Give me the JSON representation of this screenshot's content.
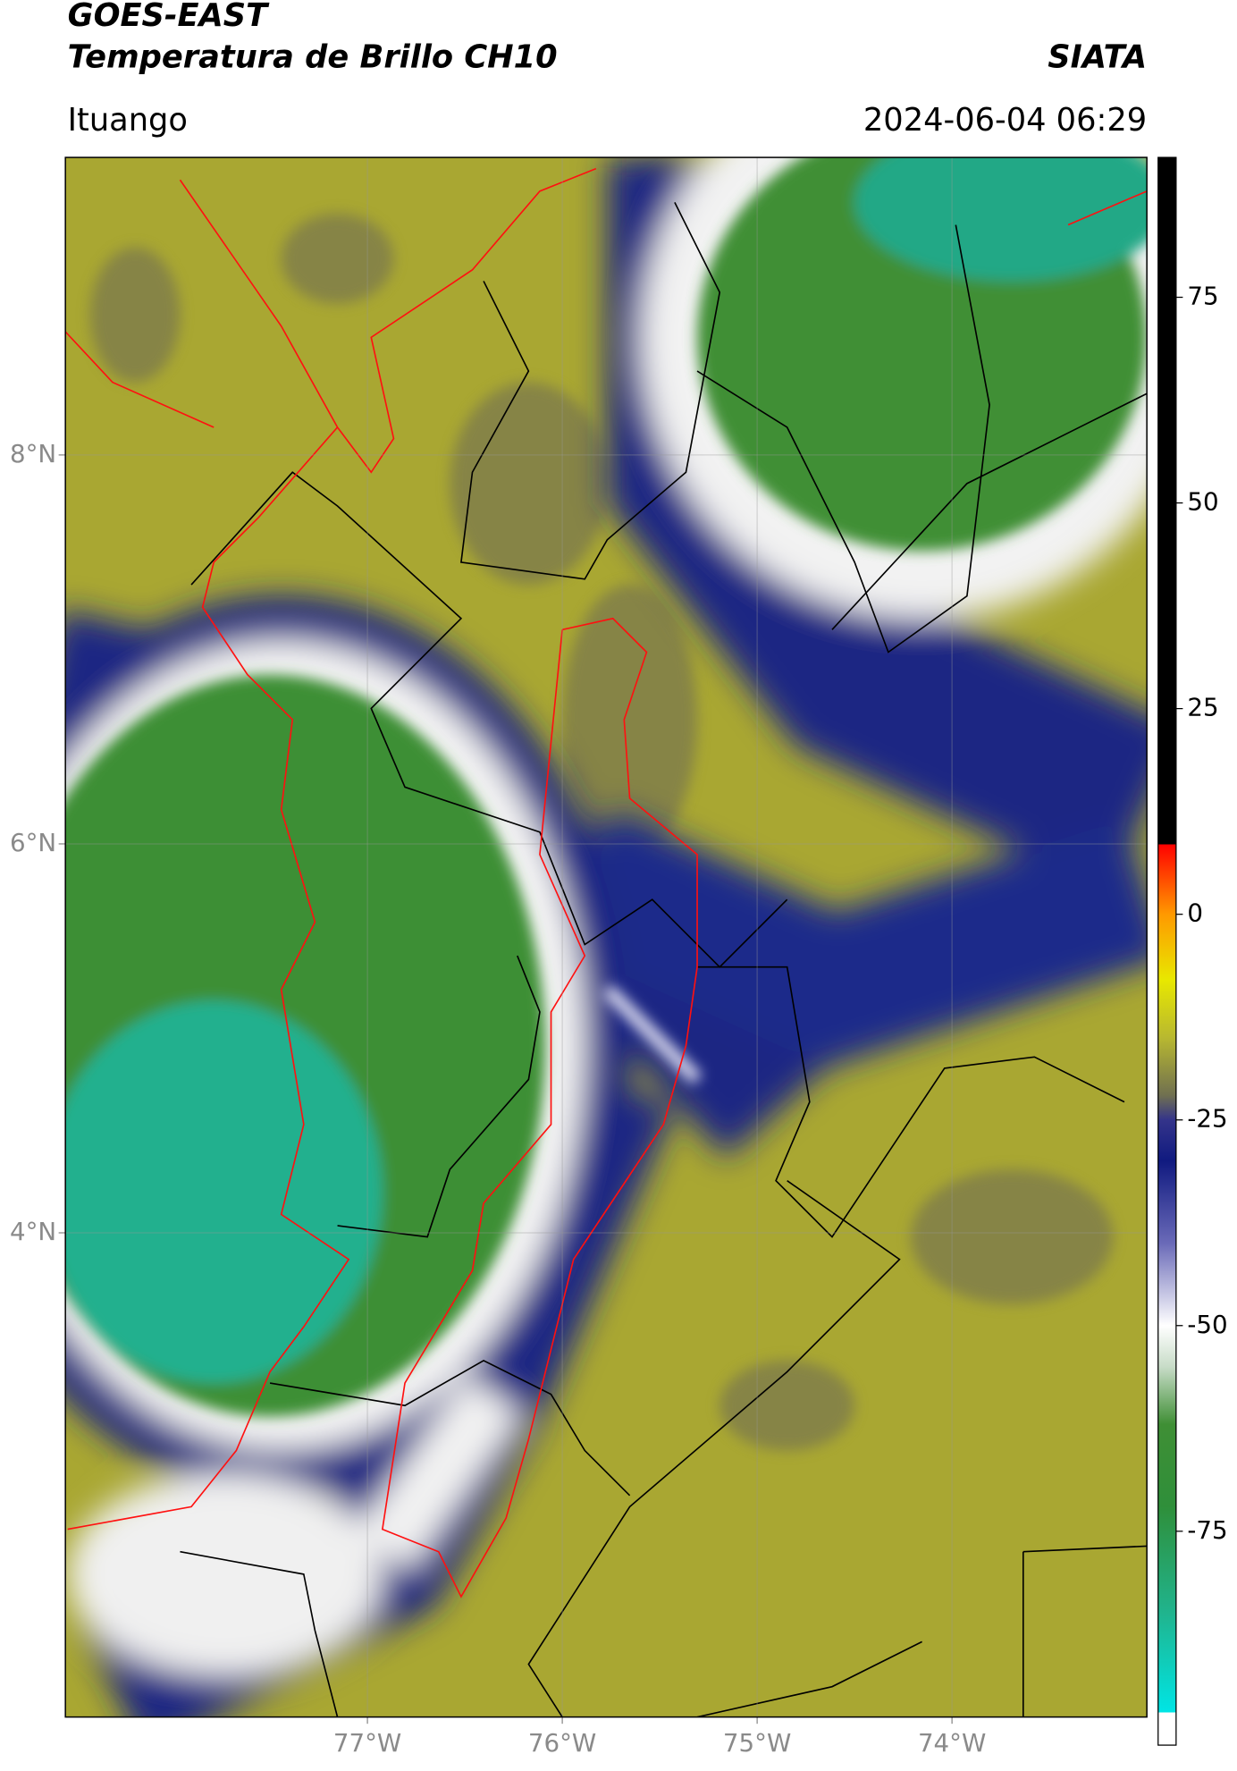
{
  "chart_data": {
    "type": "map",
    "title": "GOES-EAST",
    "subtitle": "Temperatura de Brillo CH10",
    "source": "SIATA",
    "location": "Ituango",
    "datetime": "2024-06-04 06:29",
    "xlim": [
      -78.55,
      -73.0
    ],
    "ylim": [
      1.51,
      9.53
    ],
    "xticks": [
      {
        "value": -77,
        "label": "77°W"
      },
      {
        "value": -76,
        "label": "76°W"
      },
      {
        "value": -75,
        "label": "75°W"
      },
      {
        "value": -74,
        "label": "74°W"
      }
    ],
    "yticks": [
      {
        "value": 8,
        "label": "8°N"
      },
      {
        "value": 6,
        "label": "6°N"
      },
      {
        "value": 4,
        "label": "4°N"
      }
    ],
    "grid": true,
    "colorbar": {
      "lim": [
        -101,
        92
      ],
      "ticks": [
        75,
        50,
        25,
        0,
        -25,
        -50,
        -75
      ],
      "stops": [
        [
          -101,
          "#ffffff"
        ],
        [
          -97,
          "#ffffff"
        ],
        [
          -97,
          "#00e5e5"
        ],
        [
          -85,
          "#20b48e"
        ],
        [
          -72,
          "#2f8f3a"
        ],
        [
          -62,
          "#3f8f35"
        ],
        [
          -55,
          "#c8dcc8"
        ],
        [
          -50,
          "#ffffff"
        ],
        [
          -40,
          "#6a6ab8"
        ],
        [
          -30,
          "#101a80"
        ],
        [
          -25,
          "#34348a"
        ],
        [
          -22,
          "#707050"
        ],
        [
          -15,
          "#b8b830"
        ],
        [
          -8,
          "#e8e800"
        ],
        [
          0,
          "#ff9900"
        ],
        [
          8.5,
          "#ff0000"
        ],
        [
          8.5,
          "#000000"
        ],
        [
          92,
          "#000000"
        ]
      ]
    }
  }
}
